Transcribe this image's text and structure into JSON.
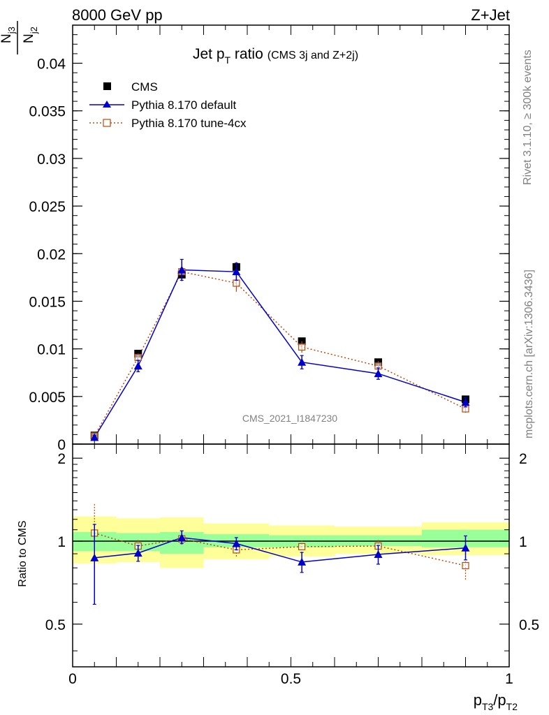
{
  "header": {
    "energy_label": "8000 GeV pp",
    "process_label": "Z+Jet"
  },
  "title": {
    "main": "Jet p",
    "main_sub": "T",
    "main_tail": " ratio",
    "small": "(CMS 3j and Z+2j)"
  },
  "side_labels": {
    "rivet": "Rivet 3.1.10, ≥ 300k events",
    "mcplots": "mcplots.cern.ch [arXiv:1306.3436]"
  },
  "analysis_id": "CMS_2021_I1847230",
  "colors": {
    "cms": "#000000",
    "pythia_default": "#0000cc",
    "pythia_tune": "#b84a0e",
    "band_inner": "#99ff99",
    "band_outer": "#ffff99"
  },
  "chart_data": [
    {
      "type": "scatter",
      "panel": "main",
      "ylabel_num": "N",
      "ylabel_num_sub": "j3",
      "ylabel_den": "N",
      "ylabel_den_sub": "j2",
      "xlim": [
        0,
        1
      ],
      "ylim": [
        0,
        0.044
      ],
      "yticks": [
        0,
        0.005,
        0.01,
        0.015,
        0.02,
        0.025,
        0.03,
        0.035,
        0.04
      ],
      "ytick_labels": [
        "0",
        "0.005",
        "0.01",
        "0.015",
        "0.02",
        "0.025",
        "0.03",
        "0.035",
        "0.04"
      ],
      "legend_position": "top-left",
      "series": [
        {
          "name": "CMS",
          "style": "data",
          "x": [
            0.05,
            0.15,
            0.25,
            0.375,
            0.525,
            0.7,
            0.9
          ],
          "xerr": [
            [
              0.0,
              0.1
            ],
            [
              0.1,
              0.2
            ],
            [
              0.2,
              0.3
            ],
            [
              0.3,
              0.45
            ],
            [
              0.45,
              0.6
            ],
            [
              0.6,
              0.8
            ],
            [
              0.8,
              1.0
            ]
          ],
          "values": [
            0.0009,
            0.0095,
            0.0178,
            0.0186,
            0.0108,
            0.0086,
            0.0047
          ],
          "errors": [
            0.0001,
            0.0004,
            0.0006,
            0.0005,
            0.0003,
            0.0003,
            0.0002
          ]
        },
        {
          "name": "Pythia 8.170 default",
          "style": "line-triangle",
          "x": [
            0.05,
            0.15,
            0.25,
            0.375,
            0.525,
            0.7,
            0.9
          ],
          "values": [
            0.0007,
            0.0082,
            0.0183,
            0.0181,
            0.0086,
            0.0074,
            0.0044
          ],
          "errors": [
            0.0002,
            0.0006,
            0.0011,
            0.0009,
            0.0007,
            0.0006,
            0.0005
          ]
        },
        {
          "name": "Pythia 8.170 tune-4cx",
          "style": "dotted-square",
          "x": [
            0.05,
            0.15,
            0.25,
            0.375,
            0.525,
            0.7,
            0.9
          ],
          "values": [
            0.00085,
            0.0091,
            0.0181,
            0.0169,
            0.0102,
            0.0082,
            0.0037
          ],
          "errors": [
            0.0002,
            0.0004,
            0.001,
            0.0009,
            0.0006,
            0.0005,
            0.0004
          ]
        }
      ]
    },
    {
      "type": "line",
      "panel": "ratio",
      "ylabel": "Ratio to CMS",
      "xlabel_main": "p",
      "xlabel_sub1": "T3",
      "xlabel_mid": "/p",
      "xlabel_sub2": "T2",
      "xlim": [
        0,
        1
      ],
      "ylim": [
        0.35,
        2.25
      ],
      "yscale": "log",
      "yticks": [
        0.5,
        1,
        2
      ],
      "ytick_labels": [
        "0.5",
        "1",
        "2"
      ],
      "xticks": [
        0,
        0.5,
        1
      ],
      "xtick_labels": [
        "0",
        "0.5",
        "1"
      ],
      "bands": {
        "bin_edges": [
          [
            0.0,
            0.1
          ],
          [
            0.1,
            0.2
          ],
          [
            0.2,
            0.3
          ],
          [
            0.3,
            0.45
          ],
          [
            0.45,
            0.6
          ],
          [
            0.6,
            0.8
          ],
          [
            0.8,
            1.0
          ]
        ],
        "inner": [
          [
            0.92,
            1.08
          ],
          [
            0.92,
            1.07
          ],
          [
            0.9,
            1.08
          ],
          [
            0.95,
            1.06
          ],
          [
            0.95,
            1.05
          ],
          [
            0.96,
            1.05
          ],
          [
            0.95,
            1.1
          ]
        ],
        "outer": [
          [
            0.83,
            1.23
          ],
          [
            0.84,
            1.21
          ],
          [
            0.8,
            1.22
          ],
          [
            0.86,
            1.16
          ],
          [
            0.88,
            1.14
          ],
          [
            0.9,
            1.13
          ],
          [
            0.89,
            1.17
          ]
        ]
      },
      "series": [
        {
          "name": "Pythia 8.170 default",
          "x": [
            0.05,
            0.15,
            0.25,
            0.375,
            0.525,
            0.7,
            0.9
          ],
          "values": [
            0.87,
            0.905,
            1.03,
            0.98,
            0.84,
            0.895,
            0.945
          ],
          "err_low": [
            0.28,
            0.06,
            0.05,
            0.05,
            0.07,
            0.07,
            0.09
          ],
          "err_high": [
            0.28,
            0.06,
            0.06,
            0.05,
            0.07,
            0.07,
            0.1
          ]
        },
        {
          "name": "Pythia 8.170 tune-4cx",
          "x": [
            0.05,
            0.15,
            0.25,
            0.375,
            0.525,
            0.7,
            0.9
          ],
          "values": [
            1.07,
            0.96,
            1.02,
            0.93,
            0.955,
            0.96,
            0.815
          ],
          "err_low": [
            0.12,
            0.05,
            0.05,
            0.05,
            0.05,
            0.05,
            0.09
          ],
          "err_high": [
            0.3,
            0.05,
            0.05,
            0.05,
            0.05,
            0.05,
            0.09
          ]
        }
      ]
    }
  ]
}
